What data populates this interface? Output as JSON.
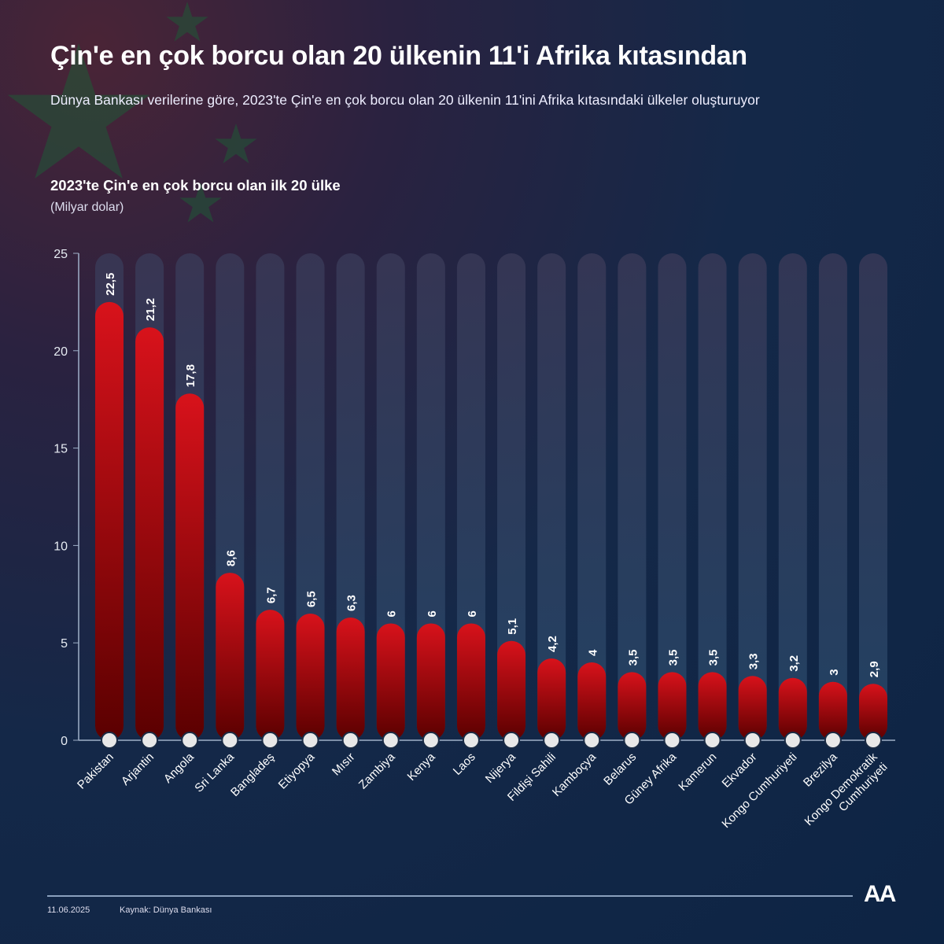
{
  "title": "Çin'e en çok borcu olan 20 ülkenin 11'i Afrika kıtasından",
  "subtitle": "Dünya Bankası verilerine göre, 2023'te Çin'e en çok borcu olan 20 ülkenin 11'ini Afrika kıtasındaki ülkeler oluşturuyor",
  "footer": {
    "date": "11.06.2025",
    "source": "Kaynak: Dünya Bankası",
    "logo": "AA"
  },
  "colors": {
    "bar_top": "#d8121b",
    "bar_bottom": "#5a0000",
    "track": "#2c4766"
  },
  "chart_data": {
    "type": "bar",
    "title": "2023'te Çin'e en çok borcu olan ilk 20 ülke",
    "ylabel": "(Milyar dolar)",
    "ylim": [
      0,
      25
    ],
    "yticks": [
      0,
      5,
      10,
      15,
      20,
      25
    ],
    "categories": [
      "Pakistan",
      "Arjantin",
      "Angola",
      "Sri Lanka",
      "Bangladeş",
      "Etiyopya",
      "Mısır",
      "Zambiya",
      "Kenya",
      "Laos",
      "Nijerya",
      "Fildişi Sahili",
      "Kamboçya",
      "Belarus",
      "Güney Afrika",
      "Kamerun",
      "Ekvador",
      "Kongo Cumhuriyeti",
      "Brezilya",
      "Kongo Demokratik Cumhuriyeti"
    ],
    "values": [
      22.5,
      21.2,
      17.8,
      8.6,
      6.7,
      6.5,
      6.3,
      6,
      6,
      6,
      5.1,
      4.2,
      4,
      3.5,
      3.5,
      3.5,
      3.3,
      3.2,
      3,
      2.9
    ],
    "value_labels": [
      "22,5",
      "21,2",
      "17,8",
      "8,6",
      "6,7",
      "6,5",
      "6,3",
      "6",
      "6",
      "6",
      "5,1",
      "4,2",
      "4",
      "3,5",
      "3,5",
      "3,5",
      "3,3",
      "3,2",
      "3",
      "2,9"
    ]
  }
}
